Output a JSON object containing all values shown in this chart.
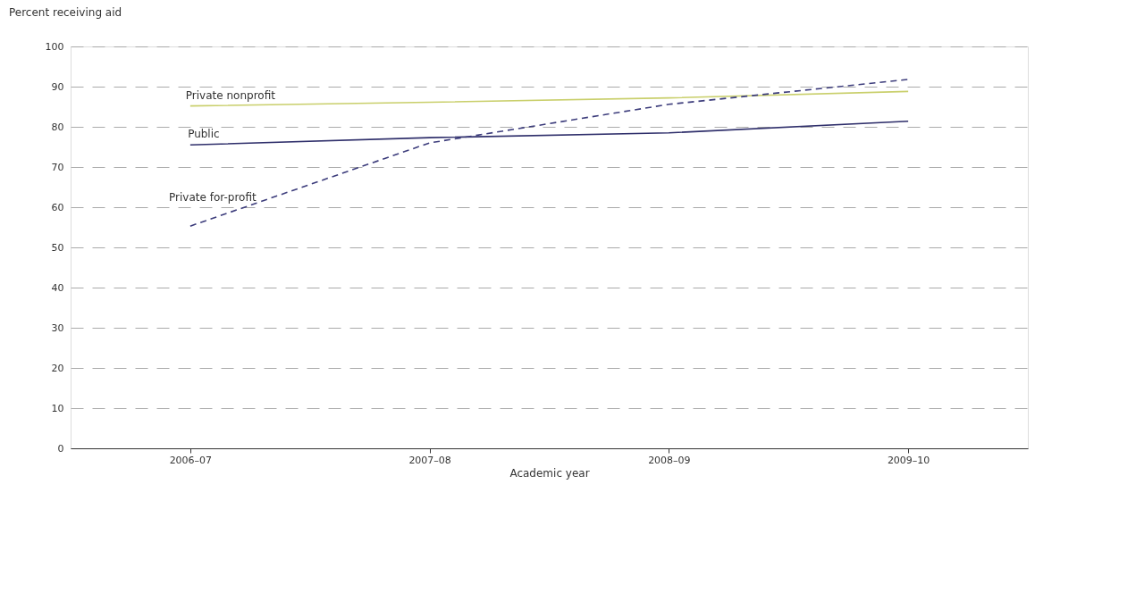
{
  "chart_data": {
    "type": "line",
    "ylabel": "Percent receiving aid",
    "xlabel": "Academic year",
    "categories": [
      "2006–07",
      "2007–08",
      "2008–09",
      "2009–10"
    ],
    "series": [
      {
        "name": "Private nonprofit",
        "color": "#c9cf6b",
        "line_style": "solid",
        "values": [
          85.2,
          86.1,
          87.2,
          88.8
        ]
      },
      {
        "name": "Public",
        "color": "#2f2f6b",
        "line_style": "solid",
        "values": [
          75.5,
          77.3,
          78.5,
          81.4
        ]
      },
      {
        "name": "Private for-profit",
        "color": "#3d3d7c",
        "line_style": "dashed",
        "values": [
          55.3,
          76.0,
          85.6,
          91.8
        ]
      }
    ],
    "ylim": [
      0,
      100
    ],
    "yticks": [
      0,
      10,
      20,
      30,
      40,
      50,
      60,
      70,
      80,
      90,
      100
    ],
    "grid": "y",
    "marker": "none"
  }
}
